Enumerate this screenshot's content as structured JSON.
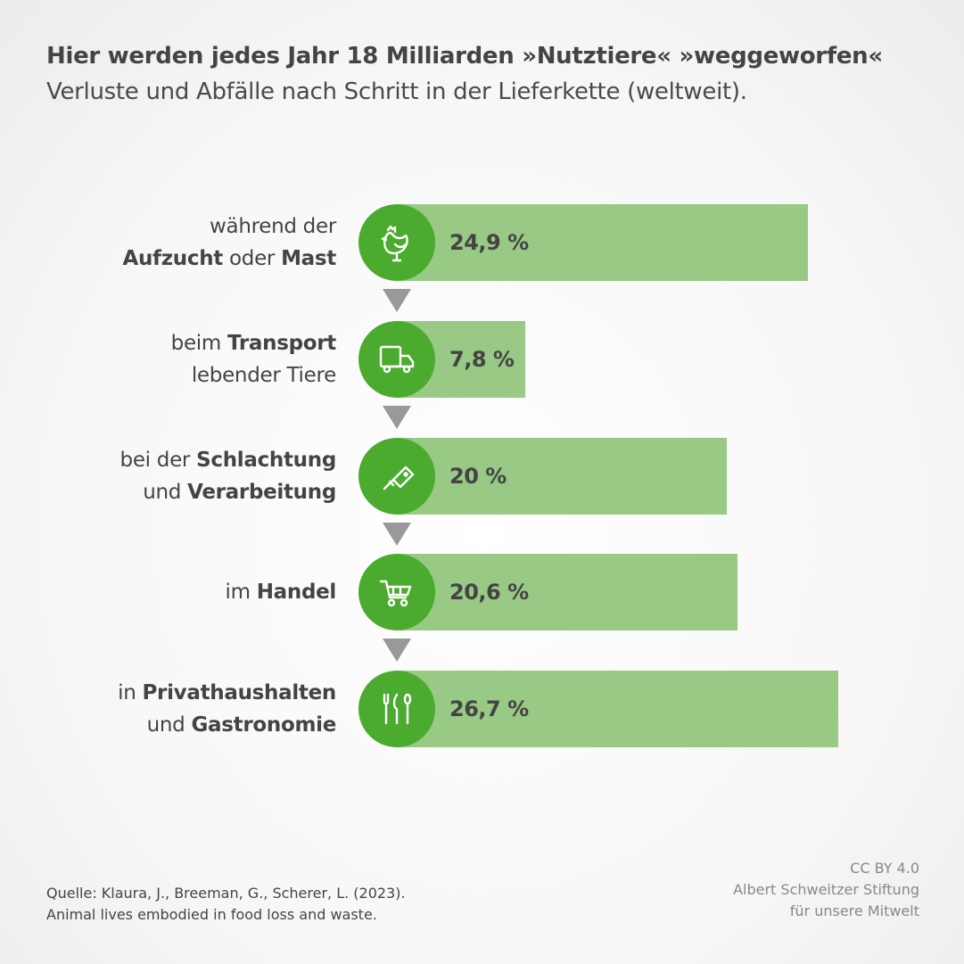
{
  "header": {
    "title": "Hier werden jedes Jahr 18 Milliarden »Nutztiere« »weggeworfen«",
    "subtitle": "Verluste und Abfälle nach Schritt in der Lieferkette (weltweit)."
  },
  "colors": {
    "bar": "#98c985",
    "circle": "#4aab2f",
    "arrow": "#999999",
    "text": "#444444"
  },
  "chart_data": {
    "type": "bar",
    "orientation": "horizontal",
    "unit": "%",
    "categories": [
      {
        "icon": "chicken-icon",
        "lines": [
          [
            {
              "t": "während der",
              "b": false
            }
          ],
          [
            {
              "t": "Aufzucht",
              "b": true
            },
            {
              "t": " oder ",
              "b": false
            },
            {
              "t": "Mast",
              "b": true
            }
          ]
        ]
      },
      {
        "icon": "truck-icon",
        "lines": [
          [
            {
              "t": "beim ",
              "b": false
            },
            {
              "t": "Transport",
              "b": true
            }
          ],
          [
            {
              "t": "lebender Tiere",
              "b": false
            }
          ]
        ]
      },
      {
        "icon": "cleaver-icon",
        "lines": [
          [
            {
              "t": "bei der ",
              "b": false
            },
            {
              "t": "Schlachtung",
              "b": true
            }
          ],
          [
            {
              "t": "und ",
              "b": false
            },
            {
              "t": "Verarbeitung",
              "b": true
            }
          ]
        ]
      },
      {
        "icon": "shopping-cart-icon",
        "lines": [
          [
            {
              "t": "im ",
              "b": false
            },
            {
              "t": "Handel",
              "b": true
            }
          ]
        ]
      },
      {
        "icon": "cutlery-icon",
        "lines": [
          [
            {
              "t": "in ",
              "b": false
            },
            {
              "t": "Privathaushalten",
              "b": true
            }
          ],
          [
            {
              "t": "und ",
              "b": false
            },
            {
              "t": "Gastronomie",
              "b": true
            }
          ]
        ]
      }
    ],
    "values": [
      24.9,
      7.8,
      20,
      20.6,
      26.7
    ],
    "value_labels": [
      "24,9 %",
      "7,8 %",
      "20 %",
      "20,6 %",
      "26,7 %"
    ],
    "xlim": [
      0,
      26.7
    ],
    "grid": false
  },
  "footer": {
    "source_lines": [
      "Quelle: Klaura, J., Breeman, G., Scherer, L. (2023).",
      "Animal lives embodied in food loss and waste."
    ],
    "credit_lines": [
      "CC BY 4.0",
      "Albert Schweitzer Stiftung",
      "für unsere Mitwelt"
    ]
  }
}
